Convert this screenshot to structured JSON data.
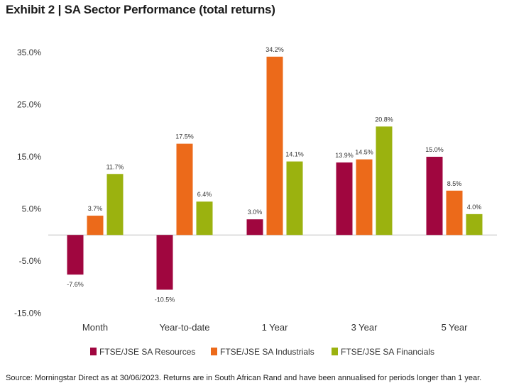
{
  "title": "Exhibit 2 | SA Sector Performance (total returns)",
  "footnote": "Source: Morningstar Direct as at 30/06/2023. Returns are in South African Rand and have been annualised for periods longer than 1 year.",
  "colors": {
    "resources": "#a0063f",
    "industrials": "#ec6a1a",
    "financials": "#9bb20f",
    "axis": "#bfbfbf"
  },
  "chart_data": {
    "type": "bar",
    "title": "Exhibit 2 | SA Sector Performance (total returns)",
    "categories": [
      "Month",
      "Year-to-date",
      "1 Year",
      "3 Year",
      "5 Year"
    ],
    "series": [
      {
        "name": "FTSE/JSE SA Resources",
        "values": [
          -7.6,
          -10.5,
          3.0,
          13.9,
          15.0
        ]
      },
      {
        "name": "FTSE/JSE SA Industrials",
        "values": [
          3.7,
          17.5,
          34.2,
          14.5,
          8.5
        ]
      },
      {
        "name": "FTSE/JSE SA Financials",
        "values": [
          11.7,
          6.4,
          14.1,
          20.8,
          4.0
        ]
      }
    ],
    "data_labels": [
      [
        "-7.6%",
        "-10.5%",
        "3.0%",
        "13.9%",
        "15.0%"
      ],
      [
        "3.7%",
        "17.5%",
        "34.2%",
        "14.5%",
        "8.5%"
      ],
      [
        "11.7%",
        "6.4%",
        "14.1%",
        "20.8%",
        "4.0%"
      ]
    ],
    "yticks": [
      "35.0%",
      "25.0%",
      "15.0%",
      "5.0%",
      "-5.0%",
      "-15.0%"
    ],
    "ytick_values": [
      35,
      25,
      15,
      5,
      -5,
      -15
    ],
    "ylim": [
      -15,
      35
    ],
    "grid": false,
    "legend_position": "bottom",
    "xlabel": "",
    "ylabel": ""
  }
}
